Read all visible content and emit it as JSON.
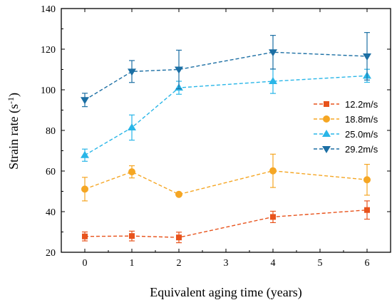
{
  "chart_data": {
    "type": "line",
    "xlabel": "Equivalent aging time (years)",
    "ylabel_main": "Strain rate (s",
    "ylabel_sup": "-1",
    "ylabel_close": ")",
    "xlim": [
      -0.5,
      6.5
    ],
    "ylim": [
      20,
      140
    ],
    "x_ticks": [
      0,
      1,
      2,
      3,
      4,
      5,
      6
    ],
    "y_ticks": [
      20,
      40,
      60,
      80,
      100,
      120,
      140
    ],
    "x": [
      0,
      1,
      2,
      4,
      6
    ],
    "legend_position": "right-middle",
    "line_style": "dashed",
    "series": [
      {
        "name": "12.2m/s",
        "marker": "square",
        "color": "#e8531c",
        "values": [
          27.8,
          28.0,
          27.3,
          37.4,
          40.8
        ],
        "errors": [
          2.2,
          2.4,
          2.6,
          2.8,
          4.5
        ]
      },
      {
        "name": "18.8m/s",
        "marker": "circle",
        "color": "#f5a623",
        "values": [
          51.1,
          59.6,
          48.5,
          60.1,
          55.7
        ],
        "errors": [
          5.8,
          3.0,
          0.8,
          8.2,
          7.6
        ]
      },
      {
        "name": "25.0m/s",
        "marker": "triangle-up",
        "color": "#29b6e8",
        "values": [
          67.8,
          81.4,
          101.0,
          104.2,
          106.9
        ],
        "errors": [
          3.0,
          6.2,
          3.2,
          6.0,
          3.2
        ]
      },
      {
        "name": "29.2m/s",
        "marker": "triangle-down",
        "color": "#1c6fa4",
        "values": [
          95.0,
          109.0,
          110.0,
          118.5,
          116.5
        ],
        "errors": [
          3.3,
          5.4,
          9.5,
          8.3,
          11.7
        ]
      }
    ]
  }
}
